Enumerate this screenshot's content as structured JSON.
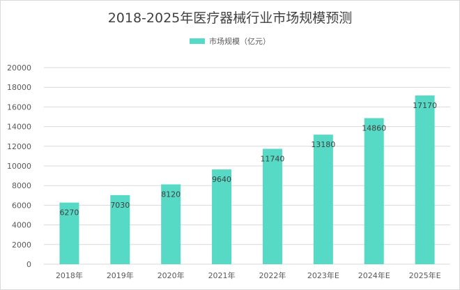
{
  "chart_data": {
    "type": "bar",
    "title": "2018-2025年医疗器械行业市场规模预测",
    "categories": [
      "2018年",
      "2019年",
      "2020年",
      "2021年",
      "2022年",
      "2023年E",
      "2024年E",
      "2025年E"
    ],
    "series": [
      {
        "name": "市场规模（亿元）",
        "values": [
          6270,
          7030,
          8120,
          9640,
          11740,
          13180,
          14860,
          17170
        ],
        "labels": [
          "6270",
          "7030",
          "8120",
          "9640",
          "11740",
          "13180",
          "14860",
          "17170"
        ]
      }
    ],
    "ylim": [
      0,
      20000
    ],
    "yticks": [
      0,
      2000,
      4000,
      6000,
      8000,
      10000,
      12000,
      14000,
      16000,
      18000,
      20000
    ],
    "ytick_labels": [
      "0",
      "2000",
      "4000",
      "6000",
      "8000",
      "10000",
      "12000",
      "14000",
      "16000",
      "18000",
      "20000"
    ],
    "grid": true,
    "legend_position": "top",
    "colors": {
      "bar": "#56d9c5",
      "grid": "#d9d9d9",
      "text": "#595959"
    }
  }
}
